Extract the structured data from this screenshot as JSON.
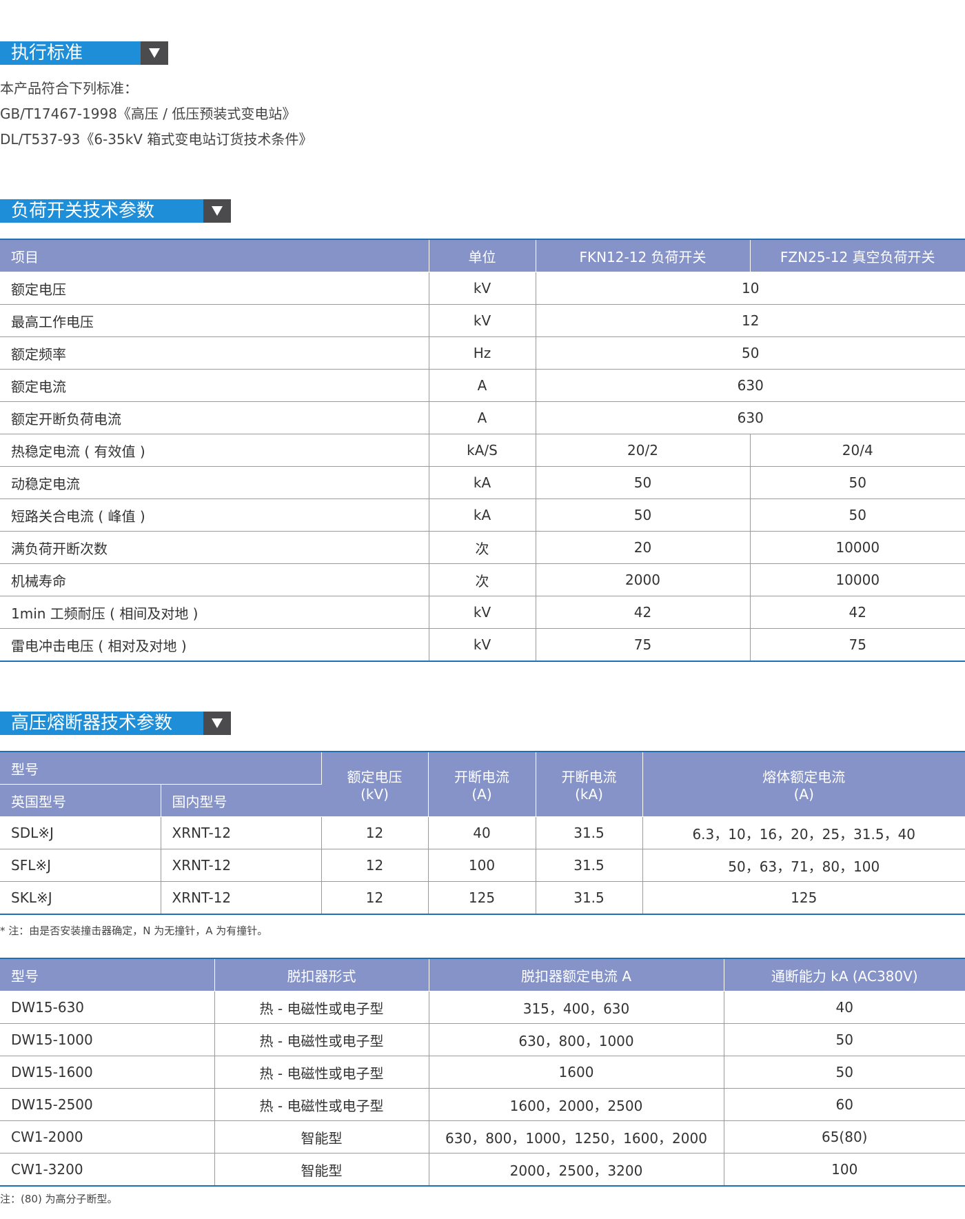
{
  "standards": {
    "title": "执行标准",
    "lines": [
      "本产品符合下列标准：",
      "GB/T17467-1998《高压 / 低压预装式变电站》",
      "DL/T537-93《6-35kV 箱式变电站订货技术条件》"
    ]
  },
  "switch": {
    "title": "负荷开关技术参数",
    "headers": [
      "项目",
      "单位",
      "FKN12-12 负荷开关",
      "FZN25-12 真空负荷开关"
    ],
    "merged_rows": [
      {
        "item": "额定电压",
        "unit": "kV",
        "value": "10"
      },
      {
        "item": "最高工作电压",
        "unit": "kV",
        "value": "12"
      },
      {
        "item": "额定频率",
        "unit": "Hz",
        "value": "50"
      },
      {
        "item": "额定电流",
        "unit": "A",
        "value": "630"
      },
      {
        "item": "额定开断负荷电流",
        "unit": "A",
        "value": "630"
      }
    ],
    "rows": [
      {
        "item": "热稳定电流 ( 有效值 )",
        "unit": "kA/S",
        "fkn": "20/2",
        "fzn": "20/4"
      },
      {
        "item": "动稳定电流",
        "unit": "kA",
        "fkn": "50",
        "fzn": "50"
      },
      {
        "item": "短路关合电流 ( 峰值 )",
        "unit": "kA",
        "fkn": "50",
        "fzn": "50"
      },
      {
        "item": "满负荷开断次数",
        "unit": "次",
        "fkn": "20",
        "fzn": "10000"
      },
      {
        "item": "机械寿命",
        "unit": "次",
        "fkn": "2000",
        "fzn": "10000"
      },
      {
        "item": "1min 工频耐压 ( 相间及对地 )",
        "unit": "kV",
        "fkn": "42",
        "fzn": "42"
      },
      {
        "item": "雷电冲击电压 ( 相对及对地 )",
        "unit": "kV",
        "fkn": "75",
        "fzn": "75"
      }
    ]
  },
  "fuse": {
    "title": "高压熔断器技术参数",
    "headers": {
      "model": "型号",
      "uk_model": "英国型号",
      "cn_model": "国内型号",
      "voltage": [
        "额定电压",
        "(kV)"
      ],
      "break_a": [
        "开断电流",
        "(A)"
      ],
      "break_ka": [
        "开断电流",
        "(kA)"
      ],
      "fuse_current": [
        "熔体额定电流",
        "(A)"
      ]
    },
    "rows": [
      {
        "uk": "SDL※J",
        "cn": "XRNT-12",
        "voltage": "12",
        "break_a": "40",
        "break_ka": "31.5",
        "fuse_current": "6.3，10，16，20，25，31.5，40"
      },
      {
        "uk": "SFL※J",
        "cn": "XRNT-12",
        "voltage": "12",
        "break_a": "100",
        "break_ka": "31.5",
        "fuse_current": "50，63，71，80，100"
      },
      {
        "uk": "SKL※J",
        "cn": "XRNT-12",
        "voltage": "12",
        "break_a": "125",
        "break_ka": "31.5",
        "fuse_current": "125"
      }
    ],
    "note": "* 注：由是否安装撞击器确定，N 为无撞针，A 为有撞针。"
  },
  "breaker": {
    "headers": [
      "型号",
      "脱扣器形式",
      "脱扣器额定电流 A",
      "通断能力 kA (AC380V)"
    ],
    "rows": [
      {
        "model": "DW15-630",
        "trip": "热 - 电磁性或电子型",
        "current": "315，400，630",
        "capacity": "40"
      },
      {
        "model": "DW15-1000",
        "trip": "热 - 电磁性或电子型",
        "current": "630，800，1000",
        "capacity": "50"
      },
      {
        "model": "DW15-1600",
        "trip": "热 - 电磁性或电子型",
        "current": "1600",
        "capacity": "50"
      },
      {
        "model": "DW15-2500",
        "trip": "热 - 电磁性或电子型",
        "current": "1600，2000，2500",
        "capacity": "60"
      },
      {
        "model": "CW1-2000",
        "trip": "智能型",
        "current": "630，800，1000，1250，1600，2000",
        "capacity": "65(80)"
      },
      {
        "model": "CW1-3200",
        "trip": "智能型",
        "current": "2000，2500，3200",
        "capacity": "100"
      }
    ],
    "note": "注：(80) 为高分子断型。"
  }
}
